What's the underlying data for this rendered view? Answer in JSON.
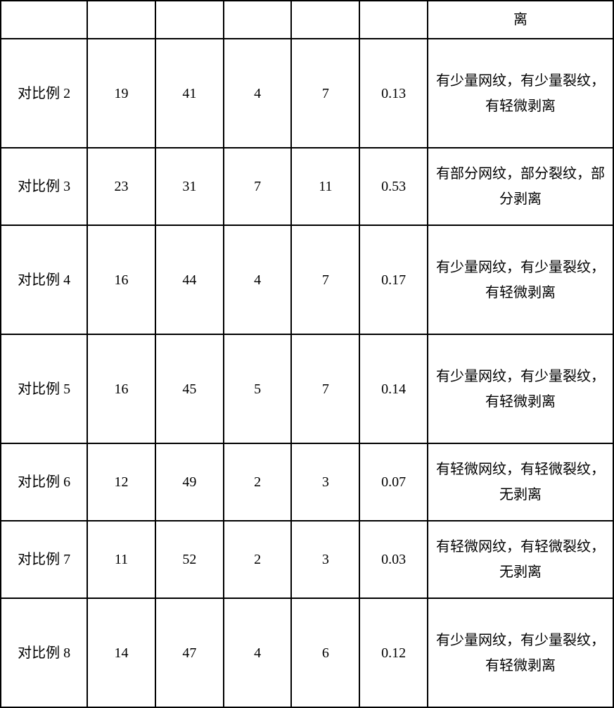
{
  "table": {
    "columns": [
      {
        "key": "label",
        "width_pct": 14
      },
      {
        "key": "val1",
        "width_pct": 11
      },
      {
        "key": "val2",
        "width_pct": 11
      },
      {
        "key": "val3",
        "width_pct": 11
      },
      {
        "key": "val4",
        "width_pct": 11
      },
      {
        "key": "val5",
        "width_pct": 11
      },
      {
        "key": "desc",
        "width_pct": 30
      }
    ],
    "rows": [
      {
        "label": "",
        "val1": "",
        "val2": "",
        "val3": "",
        "val4": "",
        "val5": "",
        "desc": "离",
        "row_height_class": "row-header"
      },
      {
        "label": "对比例 2",
        "val1": "19",
        "val2": "41",
        "val3": "4",
        "val4": "7",
        "val5": "0.13",
        "desc": "有少量网纹，有少量裂纹，有轻微剥离",
        "row_height_class": "row-tall"
      },
      {
        "label": "对比例 3",
        "val1": "23",
        "val2": "31",
        "val3": "7",
        "val4": "11",
        "val5": "0.53",
        "desc": "有部分网纹，部分裂纹，部分剥离",
        "row_height_class": "row-medium"
      },
      {
        "label": "对比例 4",
        "val1": "16",
        "val2": "44",
        "val3": "4",
        "val4": "7",
        "val5": "0.17",
        "desc": "有少量网纹，有少量裂纹，有轻微剥离",
        "row_height_class": "row-tall"
      },
      {
        "label": "对比例 5",
        "val1": "16",
        "val2": "45",
        "val3": "5",
        "val4": "7",
        "val5": "0.14",
        "desc": "有少量网纹，有少量裂纹，有轻微剥离",
        "row_height_class": "row-tall"
      },
      {
        "label": "对比例 6",
        "val1": "12",
        "val2": "49",
        "val3": "2",
        "val4": "3",
        "val5": "0.07",
        "desc": "有轻微网纹，有轻微裂纹，无剥离",
        "row_height_class": "row-medium"
      },
      {
        "label": "对比例 7",
        "val1": "11",
        "val2": "52",
        "val3": "2",
        "val4": "3",
        "val5": "0.03",
        "desc": "有轻微网纹，有轻微裂纹，无剥离",
        "row_height_class": "row-medium"
      },
      {
        "label": "对比例 8",
        "val1": "14",
        "val2": "47",
        "val3": "4",
        "val4": "6",
        "val5": "0.12",
        "desc": "有少量网纹，有少量裂纹，有轻微剥离",
        "row_height_class": "row-tall"
      }
    ],
    "styling": {
      "border_color": "#000000",
      "border_width": 2,
      "background_color": "#ffffff",
      "text_color": "#000000",
      "font_size": 20,
      "font_family": "SimSun",
      "text_align": "center",
      "vertical_align": "middle",
      "line_height": 1.8
    }
  }
}
